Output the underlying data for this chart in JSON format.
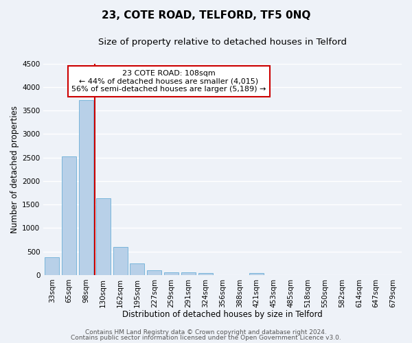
{
  "title": "23, COTE ROAD, TELFORD, TF5 0NQ",
  "subtitle": "Size of property relative to detached houses in Telford",
  "xlabel": "Distribution of detached houses by size in Telford",
  "ylabel": "Number of detached properties",
  "categories": [
    "33sqm",
    "65sqm",
    "98sqm",
    "130sqm",
    "162sqm",
    "195sqm",
    "227sqm",
    "259sqm",
    "291sqm",
    "324sqm",
    "356sqm",
    "388sqm",
    "421sqm",
    "453sqm",
    "485sqm",
    "518sqm",
    "550sqm",
    "582sqm",
    "614sqm",
    "647sqm",
    "679sqm"
  ],
  "values": [
    380,
    2520,
    3720,
    1640,
    600,
    240,
    105,
    60,
    58,
    40,
    0,
    0,
    48,
    0,
    0,
    0,
    0,
    0,
    0,
    0,
    0
  ],
  "bar_color": "#b8d0e8",
  "bar_edge_color": "#6aaed6",
  "vline_color": "#cc0000",
  "vline_pos": 2.5,
  "annotation_box_text": "23 COTE ROAD: 108sqm\n← 44% of detached houses are smaller (4,015)\n56% of semi-detached houses are larger (5,189) →",
  "annotation_box_edge_color": "#cc0000",
  "ylim": [
    0,
    4500
  ],
  "yticks": [
    0,
    500,
    1000,
    1500,
    2000,
    2500,
    3000,
    3500,
    4000,
    4500
  ],
  "footer_line1": "Contains HM Land Registry data © Crown copyright and database right 2024.",
  "footer_line2": "Contains public sector information licensed under the Open Government Licence v3.0.",
  "bg_color": "#eef2f8",
  "grid_color": "#ffffff",
  "title_fontsize": 11,
  "subtitle_fontsize": 9.5,
  "axis_label_fontsize": 8.5,
  "tick_fontsize": 7.5,
  "footer_fontsize": 6.5,
  "annotation_fontsize": 8
}
